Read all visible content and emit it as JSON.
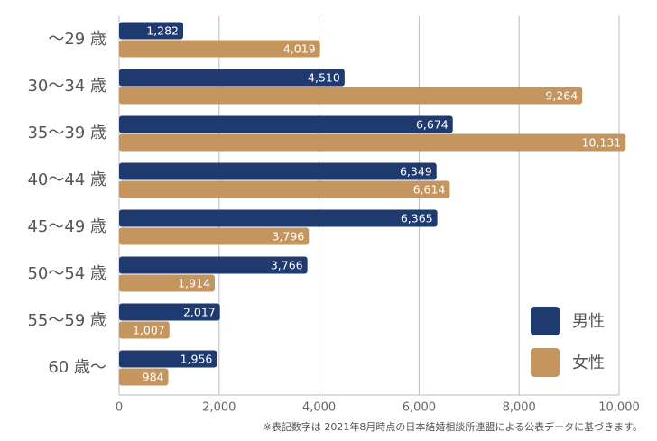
{
  "chart_data": {
    "type": "hbar",
    "categories": [
      "～29 歳",
      "30～34 歳",
      "35～39 歳",
      "40～44 歳",
      "45～49 歳",
      "50～54 歳",
      "55～59 歳",
      "60 歳～"
    ],
    "series": [
      {
        "name": "男性",
        "color": "#1f3a6e",
        "values": [
          1282,
          4510,
          6674,
          6349,
          6365,
          3766,
          2017,
          1956
        ],
        "value_labels": [
          "1,282",
          "4,510",
          "6,674",
          "6,349",
          "6,365",
          "3,766",
          "2,017",
          "1,956"
        ]
      },
      {
        "name": "女性",
        "color": "#c4955f",
        "values": [
          4019,
          9264,
          10131,
          6614,
          3796,
          1914,
          1007,
          984
        ],
        "value_labels": [
          "4,019",
          "9,264",
          "10,131",
          "6,614",
          "3,796",
          "1,914",
          "1,007",
          "984"
        ]
      }
    ],
    "xlim": [
      0,
      10000
    ],
    "xticks": [
      0,
      {
        "value": 2000,
        "label": "2,000"
      },
      {
        "value": 4000,
        "label": "4,000"
      },
      {
        "value": 6000,
        "label": "6,000"
      },
      {
        "value": 8000,
        "label": "8,000"
      },
      {
        "value": 10000,
        "label": "10,000"
      }
    ],
    "grid": true,
    "legend": "lower-right",
    "footnote": "※表記数字は 2021年8月時点の日本結婚相談所連盟による公表データに基づきます。"
  }
}
